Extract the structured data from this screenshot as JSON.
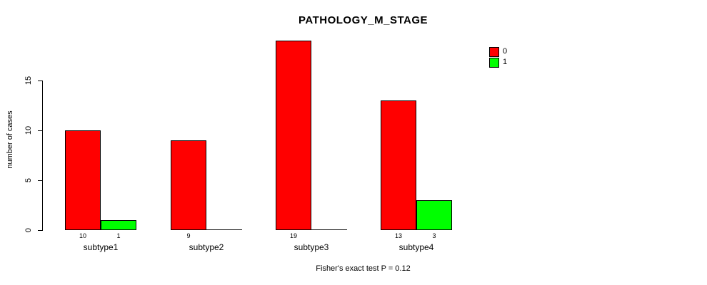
{
  "chart_data": {
    "type": "bar",
    "title": "PATHOLOGY_M_STAGE",
    "xlabel": "",
    "ylabel": "number of cases",
    "caption": "Fisher's exact test P = 0.12",
    "categories": [
      "subtype1",
      "subtype2",
      "subtype3",
      "subtype4"
    ],
    "series": [
      {
        "name": "0",
        "color": "#FF0000",
        "values": [
          10,
          9,
          19,
          13
        ]
      },
      {
        "name": "1",
        "color": "#00FF00",
        "values": [
          1,
          0,
          0,
          3
        ]
      }
    ],
    "value_labels": {
      "subtype1": [
        10,
        1
      ],
      "subtype2": [
        9,
        0
      ],
      "subtype3": [
        19,
        0
      ],
      "subtype4": [
        13,
        3
      ]
    },
    "yticks": [
      0,
      5,
      10,
      15
    ],
    "ylim": [
      0,
      19
    ],
    "grid": false,
    "legend_position": "top-right",
    "background_color": "#FFFFFF",
    "text_color": "#000000"
  }
}
